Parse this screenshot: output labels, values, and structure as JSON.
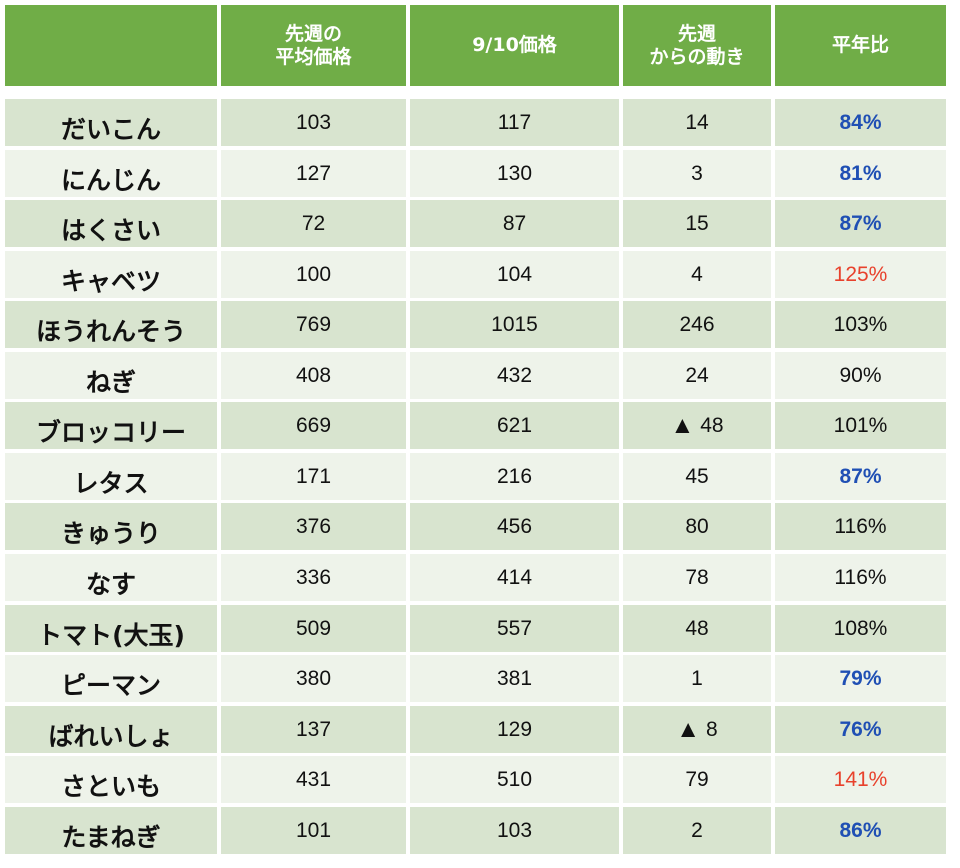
{
  "header": {
    "col0": "",
    "col1_line1": "先週の",
    "col1_line2": "平均価格",
    "col2": "9/10価格",
    "col3_line1": "先週",
    "col3_line2": "からの動き",
    "col4": "平年比"
  },
  "colors": {
    "header_bg": "#70ad47",
    "row_dark": "#d8e4cf",
    "row_light": "#eef3ea",
    "blue_text": "#1f4fb4",
    "red_text": "#e8412c"
  },
  "chart_data": {
    "type": "table",
    "columns": [
      "",
      "先週の平均価格",
      "9/10価格",
      "先週からの動き",
      "平年比"
    ],
    "rows": [
      {
        "name": "だいこん",
        "prev_avg": "103",
        "price": "117",
        "change": "14",
        "down": false,
        "ratio": "84%",
        "ratio_color": "blue"
      },
      {
        "name": "にんじん",
        "prev_avg": "127",
        "price": "130",
        "change": "3",
        "down": false,
        "ratio": "81%",
        "ratio_color": "blue"
      },
      {
        "name": "はくさい",
        "prev_avg": "72",
        "price": "87",
        "change": "15",
        "down": false,
        "ratio": "87%",
        "ratio_color": "blue"
      },
      {
        "name": "キャベツ",
        "prev_avg": "100",
        "price": "104",
        "change": "4",
        "down": false,
        "ratio": "125%",
        "ratio_color": "red"
      },
      {
        "name": "ほうれんそう",
        "prev_avg": "769",
        "price": "1015",
        "change": "246",
        "down": false,
        "ratio": "103%",
        "ratio_color": "black"
      },
      {
        "name": "ねぎ",
        "prev_avg": "408",
        "price": "432",
        "change": "24",
        "down": false,
        "ratio": "90%",
        "ratio_color": "black"
      },
      {
        "name": "ブロッコリー",
        "prev_avg": "669",
        "price": "621",
        "change": "48",
        "down": true,
        "ratio": "101%",
        "ratio_color": "black"
      },
      {
        "name": "レタス",
        "prev_avg": "171",
        "price": "216",
        "change": "45",
        "down": false,
        "ratio": "87%",
        "ratio_color": "blue"
      },
      {
        "name": "きゅうり",
        "prev_avg": "376",
        "price": "456",
        "change": "80",
        "down": false,
        "ratio": "116%",
        "ratio_color": "black"
      },
      {
        "name": "なす",
        "prev_avg": "336",
        "price": "414",
        "change": "78",
        "down": false,
        "ratio": "116%",
        "ratio_color": "black"
      },
      {
        "name": "トマト(大玉)",
        "prev_avg": "509",
        "price": "557",
        "change": "48",
        "down": false,
        "ratio": "108%",
        "ratio_color": "black"
      },
      {
        "name": "ピーマン",
        "prev_avg": "380",
        "price": "381",
        "change": "1",
        "down": false,
        "ratio": "79%",
        "ratio_color": "blue"
      },
      {
        "name": "ばれいしょ",
        "prev_avg": "137",
        "price": "129",
        "change": "8",
        "down": true,
        "ratio": "76%",
        "ratio_color": "blue"
      },
      {
        "name": "さといも",
        "prev_avg": "431",
        "price": "510",
        "change": "79",
        "down": false,
        "ratio": "141%",
        "ratio_color": "red"
      },
      {
        "name": "たまねぎ",
        "prev_avg": "101",
        "price": "103",
        "change": "2",
        "down": false,
        "ratio": "86%",
        "ratio_color": "blue"
      }
    ]
  }
}
